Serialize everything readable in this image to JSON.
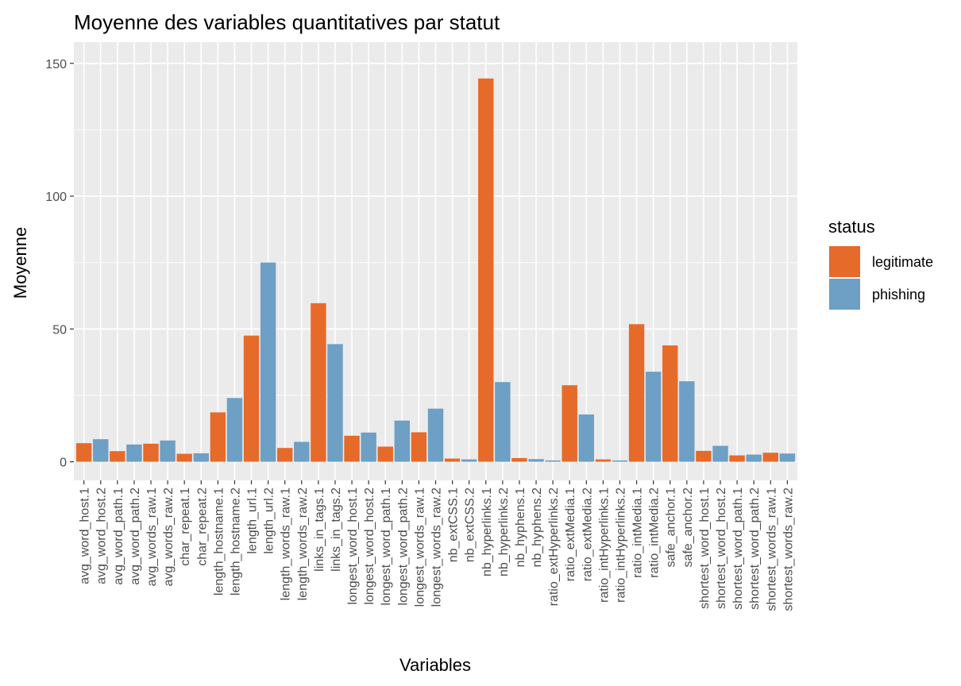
{
  "chart_data": {
    "type": "bar",
    "title": "Moyenne des variables quantitatives par statut",
    "xlabel": "Variables",
    "ylabel": "Moyenne",
    "ylim": [
      -7,
      150
    ],
    "yticks": [
      0,
      50,
      100,
      150
    ],
    "grid": true,
    "legend": {
      "title": "status",
      "placement": "right"
    },
    "categories": [
      "avg_word_host.1",
      "avg_word_host.2",
      "avg_word_path.1",
      "avg_word_path.2",
      "avg_words_raw.1",
      "avg_words_raw.2",
      "char_repeat.1",
      "char_repeat.2",
      "length_hostname.1",
      "length_hostname.2",
      "length_url.1",
      "length_url.2",
      "length_words_raw.1",
      "length_words_raw.2",
      "links_in_tags.1",
      "links_in_tags.2",
      "longest_word_host.1",
      "longest_word_host.2",
      "longest_word_path.1",
      "longest_word_path.2",
      "longest_words_raw.1",
      "longest_words_raw.2",
      "nb_extCSS.1",
      "nb_extCSS.2",
      "nb_hyperlinks.1",
      "nb_hyperlinks.2",
      "nb_hyphens.1",
      "nb_hyphens.2",
      "ratio_extHyperlinks.2",
      "ratio_extMedia.1",
      "ratio_extMedia.2",
      "ratio_intHyperlinks.1",
      "ratio_intHyperlinks.2",
      "ratio_intMedia.1",
      "ratio_intMedia.2",
      "safe_anchor.1",
      "safe_anchor.2",
      "shortest_word_host.1",
      "shortest_word_host.2",
      "shortest_word_path.1",
      "shortest_word_path.2",
      "shortest_words_raw.1",
      "shortest_words_raw.2"
    ],
    "series": [
      {
        "name": "legitimate",
        "color": "#E66A2A"
      },
      {
        "name": "phishing",
        "color": "#6E9FC4"
      }
    ],
    "bars": [
      {
        "category": "avg_word_host.1",
        "series": "legitimate",
        "value": 7.0
      },
      {
        "category": "avg_word_host.2",
        "series": "phishing",
        "value": 8.5
      },
      {
        "category": "avg_word_path.1",
        "series": "legitimate",
        "value": 4.0
      },
      {
        "category": "avg_word_path.2",
        "series": "phishing",
        "value": 6.5
      },
      {
        "category": "avg_words_raw.1",
        "series": "legitimate",
        "value": 6.8
      },
      {
        "category": "avg_words_raw.2",
        "series": "phishing",
        "value": 8.0
      },
      {
        "category": "char_repeat.1",
        "series": "legitimate",
        "value": 3.0
      },
      {
        "category": "char_repeat.2",
        "series": "phishing",
        "value": 3.2
      },
      {
        "category": "length_hostname.1",
        "series": "legitimate",
        "value": 18.6
      },
      {
        "category": "length_hostname.2",
        "series": "phishing",
        "value": 24.0
      },
      {
        "category": "length_url.1",
        "series": "legitimate",
        "value": 47.5
      },
      {
        "category": "length_url.2",
        "series": "phishing",
        "value": 75.0
      },
      {
        "category": "length_words_raw.1",
        "series": "legitimate",
        "value": 5.2
      },
      {
        "category": "length_words_raw.2",
        "series": "phishing",
        "value": 7.5
      },
      {
        "category": "links_in_tags.1",
        "series": "legitimate",
        "value": 59.7
      },
      {
        "category": "links_in_tags.2",
        "series": "phishing",
        "value": 44.3
      },
      {
        "category": "longest_word_host.1",
        "series": "legitimate",
        "value": 9.8
      },
      {
        "category": "longest_word_host.2",
        "series": "phishing",
        "value": 11.0
      },
      {
        "category": "longest_word_path.1",
        "series": "legitimate",
        "value": 5.7
      },
      {
        "category": "longest_word_path.2",
        "series": "phishing",
        "value": 15.5
      },
      {
        "category": "longest_words_raw.1",
        "series": "legitimate",
        "value": 11.1
      },
      {
        "category": "longest_words_raw.2",
        "series": "phishing",
        "value": 20.0
      },
      {
        "category": "nb_extCSS.1",
        "series": "legitimate",
        "value": 1.2
      },
      {
        "category": "nb_extCSS.2",
        "series": "phishing",
        "value": 0.9
      },
      {
        "category": "nb_hyperlinks.1",
        "series": "legitimate",
        "value": 144.3
      },
      {
        "category": "nb_hyperlinks.2",
        "series": "phishing",
        "value": 30.0
      },
      {
        "category": "nb_hyphens.1",
        "series": "legitimate",
        "value": 1.4
      },
      {
        "category": "nb_hyphens.2",
        "series": "phishing",
        "value": 1.0
      },
      {
        "category": "ratio_extHyperlinks.2",
        "series": "phishing",
        "value": 0.5
      },
      {
        "category": "ratio_extMedia.1",
        "series": "legitimate",
        "value": 28.8
      },
      {
        "category": "ratio_extMedia.2",
        "series": "phishing",
        "value": 17.8
      },
      {
        "category": "ratio_intHyperlinks.1",
        "series": "legitimate",
        "value": 0.9
      },
      {
        "category": "ratio_intHyperlinks.2",
        "series": "phishing",
        "value": 0.5
      },
      {
        "category": "ratio_intMedia.1",
        "series": "legitimate",
        "value": 51.8
      },
      {
        "category": "ratio_intMedia.2",
        "series": "phishing",
        "value": 33.9
      },
      {
        "category": "safe_anchor.1",
        "series": "legitimate",
        "value": 43.8
      },
      {
        "category": "safe_anchor.2",
        "series": "phishing",
        "value": 30.3
      },
      {
        "category": "shortest_word_host.1",
        "series": "legitimate",
        "value": 4.1
      },
      {
        "category": "shortest_word_host.2",
        "series": "phishing",
        "value": 6.0
      },
      {
        "category": "shortest_word_path.1",
        "series": "legitimate",
        "value": 2.4
      },
      {
        "category": "shortest_word_path.2",
        "series": "phishing",
        "value": 2.7
      },
      {
        "category": "shortest_words_raw.1",
        "series": "legitimate",
        "value": 3.4
      },
      {
        "category": "shortest_words_raw.2",
        "series": "phishing",
        "value": 3.1
      }
    ]
  }
}
